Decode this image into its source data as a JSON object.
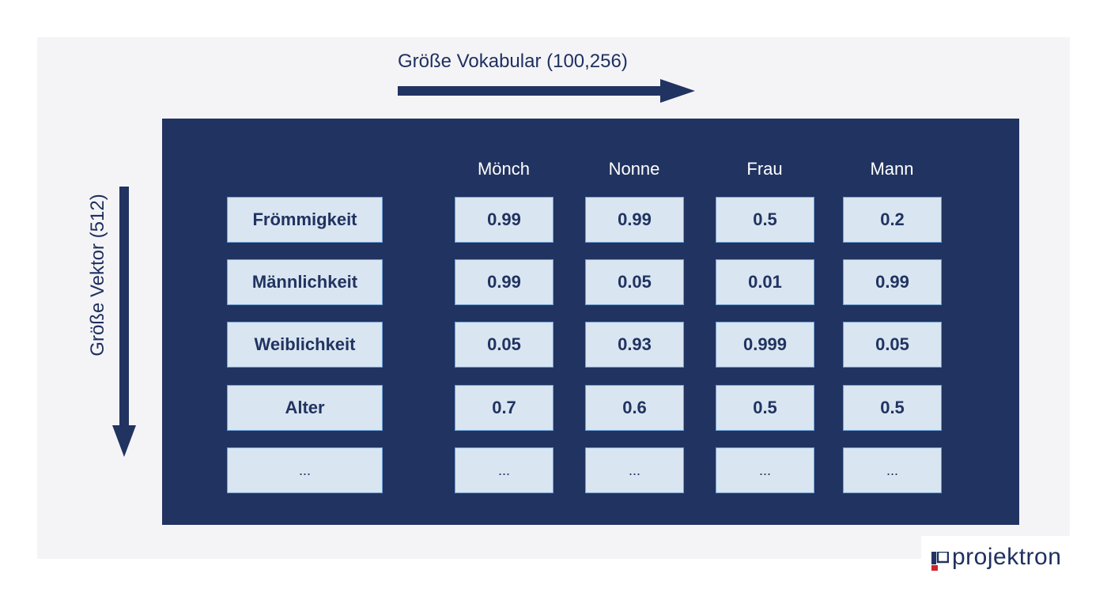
{
  "title_top": "Größe Vokabular (100,256)",
  "title_side": "Größe Vektor (512)",
  "columns": [
    "Mönch",
    "Nonne",
    "Frau",
    "Mann"
  ],
  "rows": [
    {
      "label": "Frömmigkeit",
      "values": [
        "0.99",
        "0.99",
        "0.5",
        "0.2"
      ]
    },
    {
      "label": "Männlichkeit",
      "values": [
        "0.99",
        "0.05",
        "0.01",
        "0.99"
      ]
    },
    {
      "label": "Weiblichkeit",
      "values": [
        "0.05",
        "0.93",
        "0.999",
        "0.05"
      ]
    },
    {
      "label": "Alter",
      "values": [
        "0.7",
        "0.6",
        "0.5",
        "0.5"
      ]
    },
    {
      "label": "...",
      "values": [
        "...",
        "...",
        "...",
        "..."
      ]
    }
  ],
  "logo": {
    "text": "projektron"
  },
  "colors": {
    "navy": "#213360",
    "cell": "#d9e5f1",
    "cell_border": "#6fa1d8",
    "panel": "#f4f4f6",
    "logo_red": "#d0242b"
  }
}
